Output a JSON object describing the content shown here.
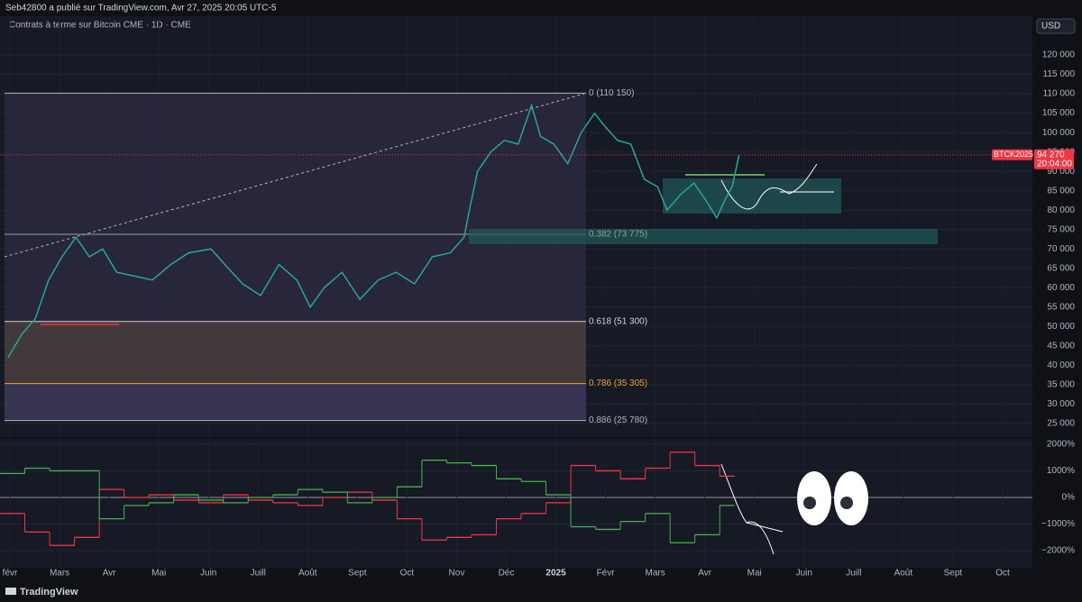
{
  "header": {
    "title": "Seb42800 a publié sur TradingView.com, Avr 27, 2025 20:05 UTC-5"
  },
  "chart_data": [
    {
      "type": "line",
      "title": "Contrats à terme sur Bitcoin CME · 1D · CME",
      "currency": "USD",
      "color": "#26a69a",
      "grid": true,
      "x": [
        -0.04,
        0.24,
        0.51,
        0.78,
        1.05,
        1.33,
        1.6,
        1.87,
        2.15,
        2.51,
        2.87,
        3.24,
        3.6,
        4.05,
        4.33,
        4.69,
        5.05,
        5.42,
        5.78,
        6.05,
        6.33,
        6.69,
        7.05,
        7.42,
        7.78,
        8.15,
        8.51,
        8.87,
        9.15,
        9.24,
        9.42,
        9.69,
        9.96,
        10.24,
        10.51,
        10.69,
        10.96,
        11.24,
        11.51,
        11.78,
        11.96,
        12.24,
        12.51,
        12.78,
        13.05,
        13.24,
        13.51,
        13.78,
        14.05,
        14.24,
        14.42,
        14.55,
        14.69
      ],
      "values": [
        42000,
        48000,
        52000,
        62000,
        68000,
        73000,
        68000,
        70000,
        64000,
        63000,
        62000,
        66000,
        69000,
        70000,
        66000,
        61000,
        58000,
        66000,
        62000,
        55000,
        60000,
        64000,
        57000,
        62000,
        64000,
        61000,
        68000,
        69000,
        73000,
        79000,
        90000,
        95000,
        98000,
        97000,
        107000,
        99000,
        97000,
        92000,
        100000,
        105000,
        102000,
        98000,
        97000,
        88000,
        86000,
        80000,
        84000,
        87000,
        82000,
        78000,
        83000,
        86000,
        94270
      ],
      "xlim": [
        -0.2,
        20.6
      ],
      "ylim": [
        21500,
        130000
      ],
      "yticks": [
        {
          "value": 25000,
          "label": "25 000"
        },
        {
          "value": 30000,
          "label": "30 000"
        },
        {
          "value": 35000,
          "label": "35 000"
        },
        {
          "value": 40000,
          "label": "40 000"
        },
        {
          "value": 45000,
          "label": "45 000"
        },
        {
          "value": 50000,
          "label": "50 000"
        },
        {
          "value": 55000,
          "label": "55 000"
        },
        {
          "value": 60000,
          "label": "60 000"
        },
        {
          "value": 65000,
          "label": "65 000"
        },
        {
          "value": 70000,
          "label": "70 000"
        },
        {
          "value": 75000,
          "label": "75 000"
        },
        {
          "value": 80000,
          "label": "80 000"
        },
        {
          "value": 85000,
          "label": "85 000"
        },
        {
          "value": 90000,
          "label": "90 000"
        },
        {
          "value": 95000,
          "label": "95 000"
        },
        {
          "value": 100000,
          "label": "100 000"
        },
        {
          "value": 105000,
          "label": "105 000"
        },
        {
          "value": 110000,
          "label": "110 000"
        },
        {
          "value": 115000,
          "label": "115 000"
        },
        {
          "value": 120000,
          "label": "120 000"
        }
      ],
      "fib_levels": [
        {
          "label": "0 (110 150)",
          "value": 110150,
          "color": "#b2b5be",
          "fill": "#2b2940"
        },
        {
          "label": "0.382 (73 775)",
          "value": 73775,
          "color": "#8fa3a8",
          "fill": "#2b2940"
        },
        {
          "label": "0.618 (51 300)",
          "value": 51300,
          "color": "#d1d4dc",
          "fill": "#4a3f42"
        },
        {
          "label": "0.786 (35 305)",
          "value": 35305,
          "color": "#f0a030",
          "fill": "#3d3a5a"
        },
        {
          "label": "0.886 (25 780)",
          "value": 25780,
          "color": "#b2b5be",
          "fill": null
        }
      ],
      "price_label": {
        "symbol": "BTCK2025",
        "value": 94270,
        "value_label": "94 270",
        "time": "20:04:00",
        "color": "#f23645"
      }
    },
    {
      "type": "step",
      "x": [
        -0.2,
        0.3,
        0.8,
        1.3,
        1.8,
        2.3,
        2.8,
        3.3,
        3.8,
        4.3,
        4.8,
        5.3,
        5.8,
        6.3,
        6.8,
        7.3,
        7.8,
        8.3,
        8.8,
        9.3,
        9.8,
        10.3,
        10.8,
        11.3,
        11.8,
        12.3,
        12.8,
        13.3,
        13.8,
        14.3
      ],
      "series": [
        {
          "color": "#f23645",
          "values": [
            -600,
            -1300,
            -1800,
            -1500,
            300,
            0,
            100,
            -100,
            -200,
            100,
            -100,
            -200,
            -300,
            0,
            200,
            -100,
            -800,
            -1600,
            -1500,
            -1400,
            -800,
            -600,
            -200,
            1200,
            1000,
            700,
            1100,
            1700,
            1200,
            800
          ]
        },
        {
          "color": "#4caf50",
          "values": [
            900,
            1100,
            1000,
            1000,
            -800,
            -300,
            -200,
            100,
            -100,
            -200,
            0,
            100,
            300,
            200,
            -200,
            0,
            400,
            1400,
            1300,
            1200,
            700,
            600,
            100,
            -1100,
            -1200,
            -900,
            -600,
            -1700,
            -1400,
            -300
          ]
        }
      ],
      "xlim": [
        -0.2,
        20.6
      ],
      "ylim": [
        -2640,
        2200
      ],
      "yticks": [
        {
          "value": 2000,
          "label": "2000%"
        },
        {
          "value": 1000,
          "label": "1000%"
        },
        {
          "value": 0,
          "label": "0%"
        },
        {
          "value": -1000,
          "label": "−1000%"
        },
        {
          "value": -2000,
          "label": "−2000%"
        }
      ],
      "xticks": [
        {
          "value": 0,
          "label": "févr"
        },
        {
          "value": 1,
          "label": "Mars"
        },
        {
          "value": 2,
          "label": "Avr"
        },
        {
          "value": 3,
          "label": "Mai"
        },
        {
          "value": 4,
          "label": "Juin"
        },
        {
          "value": 5,
          "label": "Juill"
        },
        {
          "value": 6,
          "label": "Août"
        },
        {
          "value": 7,
          "label": "Sept"
        },
        {
          "value": 8,
          "label": "Oct"
        },
        {
          "value": 9,
          "label": "Nov"
        },
        {
          "value": 10,
          "label": "Déc"
        },
        {
          "value": 11,
          "label": "2025"
        },
        {
          "value": 12,
          "label": "Févr"
        },
        {
          "value": 13,
          "label": "Mars"
        },
        {
          "value": 14,
          "label": "Avr"
        },
        {
          "value": 15,
          "label": "Mai"
        },
        {
          "value": 16,
          "label": "Juin"
        },
        {
          "value": 17,
          "label": "Juill"
        },
        {
          "value": 18,
          "label": "Août"
        },
        {
          "value": 19,
          "label": "Sept"
        },
        {
          "value": 20,
          "label": "Oct"
        }
      ]
    }
  ],
  "footer": {
    "brand": "TradingView"
  }
}
